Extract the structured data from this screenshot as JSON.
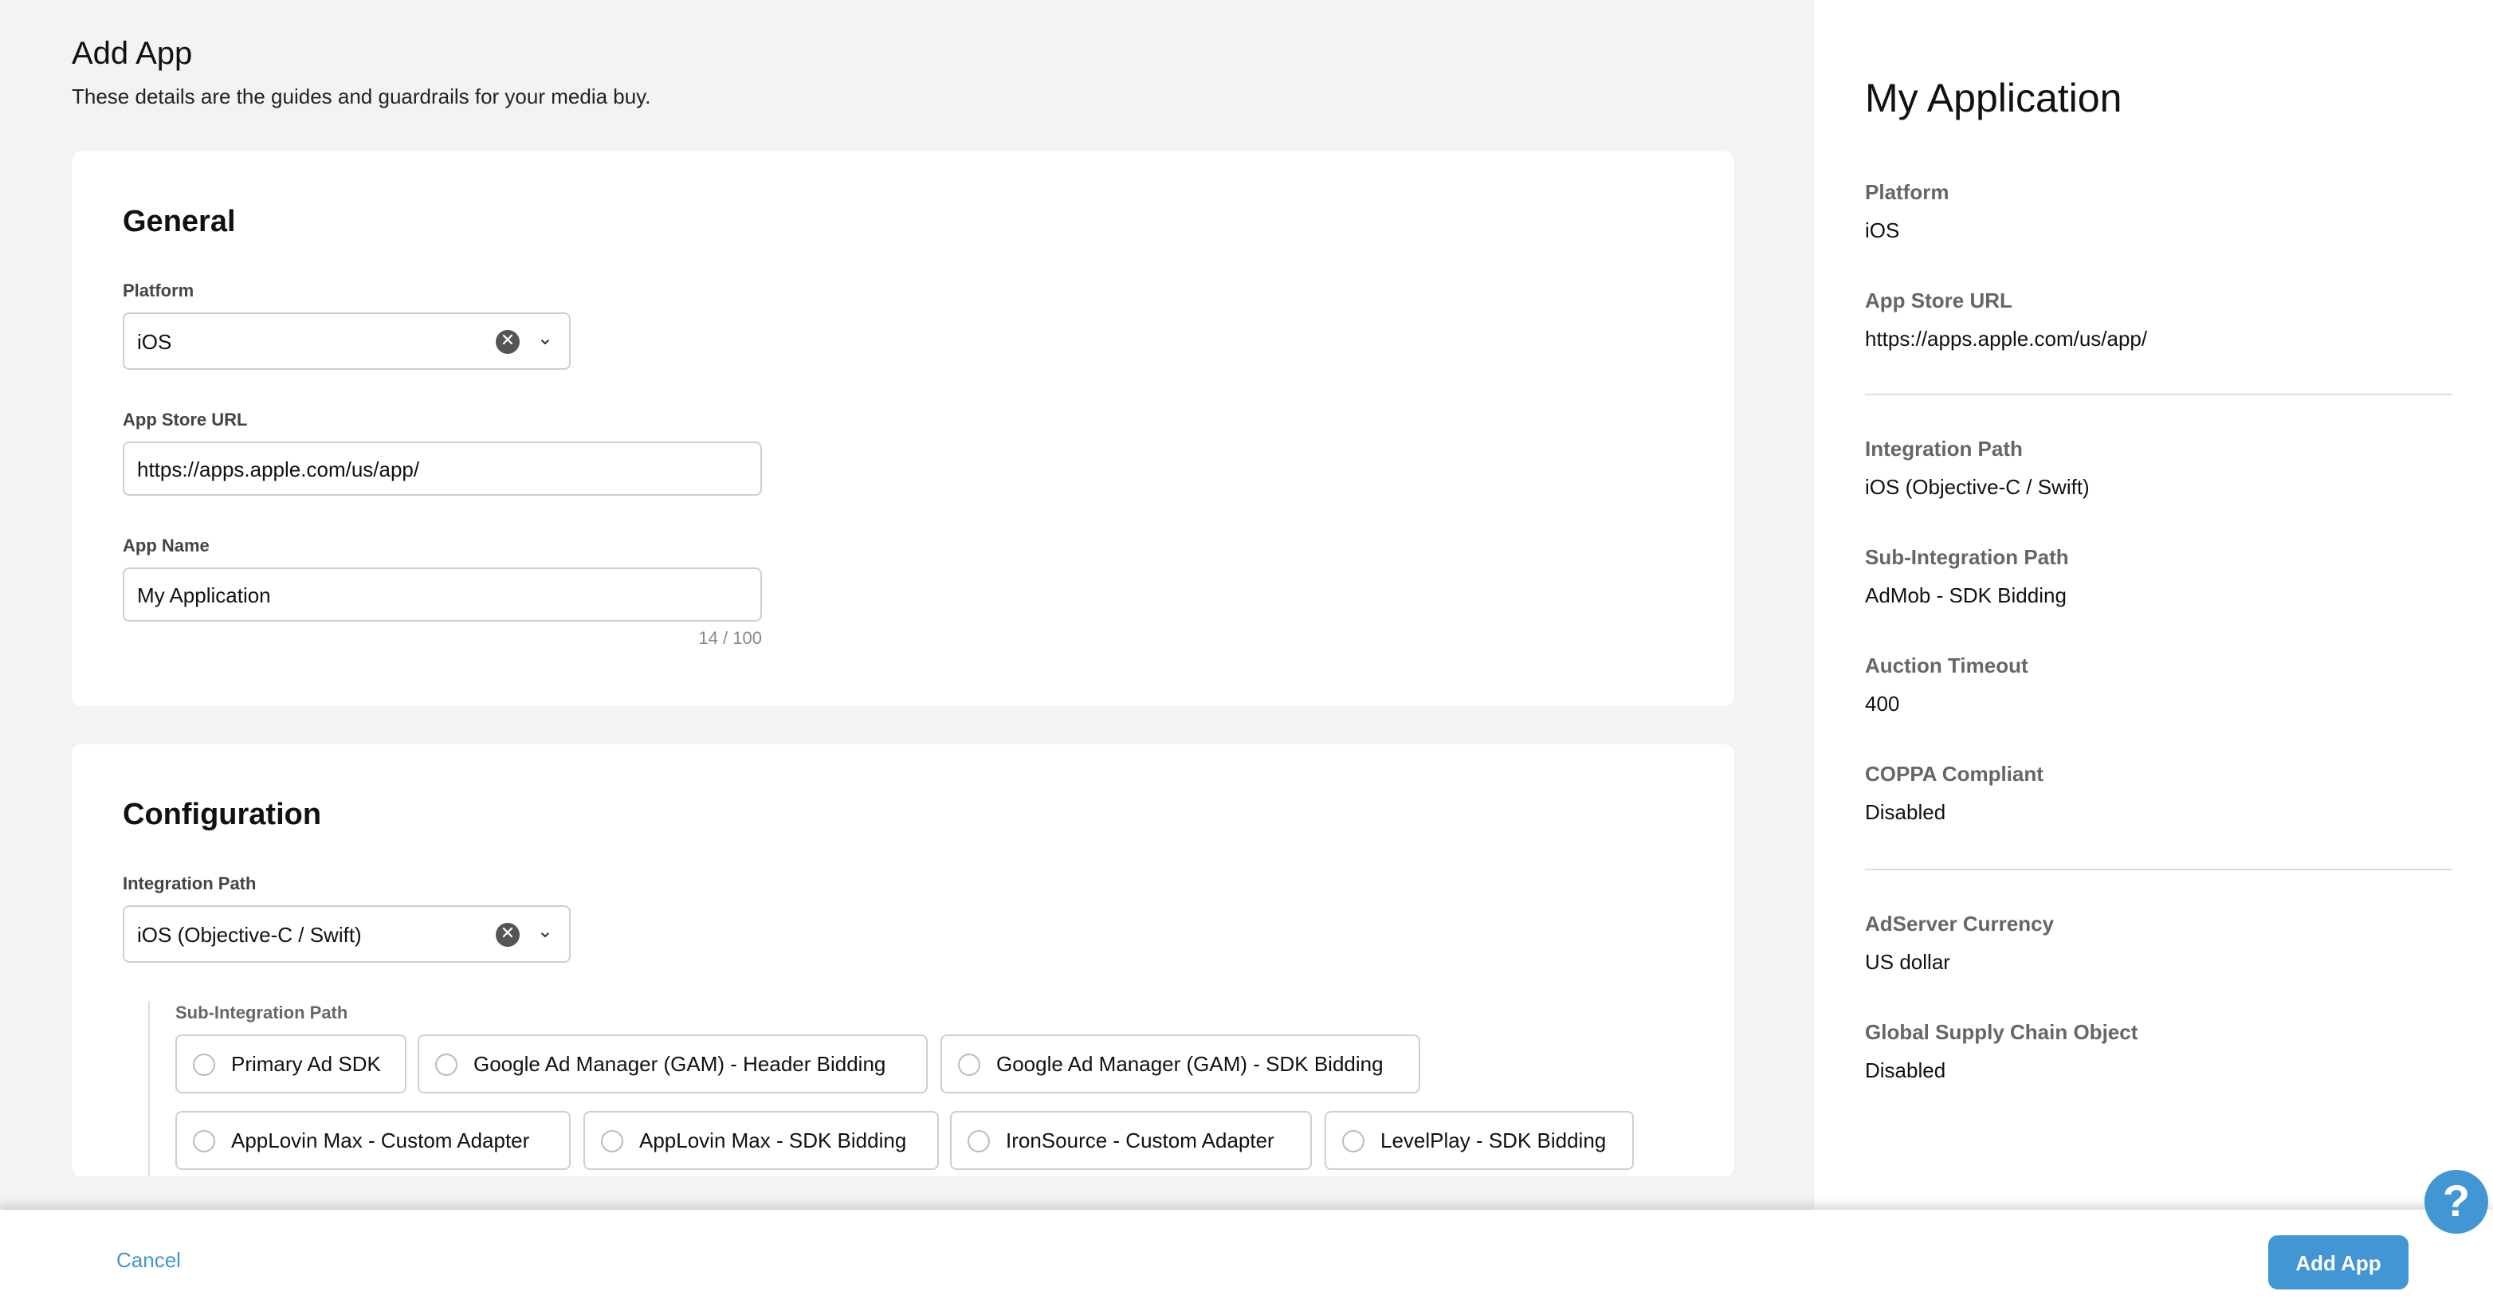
{
  "header": {
    "title": "Add App",
    "subtitle": "These details are the guides and guardrails for your media buy."
  },
  "general": {
    "title": "General",
    "platform": {
      "label": "Platform",
      "value": "iOS"
    },
    "app_store_url": {
      "label": "App Store URL",
      "value": "https://apps.apple.com/us/app/"
    },
    "app_name": {
      "label": "App Name",
      "value": "My Application",
      "counter": "14 / 100"
    }
  },
  "configuration": {
    "title": "Configuration",
    "integration_path": {
      "label": "Integration Path",
      "value": "iOS (Objective-C / Swift)"
    },
    "sub_integration": {
      "label": "Sub-Integration Path",
      "options": [
        "Primary Ad SDK",
        "Google Ad Manager (GAM) - Header Bidding",
        "Google Ad Manager (GAM) - SDK Bidding",
        "AppLovin Max - Custom Adapter",
        "AppLovin Max - SDK Bidding",
        "IronSource - Custom Adapter",
        "LevelPlay - SDK Bidding"
      ]
    }
  },
  "summary": {
    "title": "My Application",
    "items": [
      {
        "label": "Platform",
        "value": "iOS"
      },
      {
        "label": "App Store URL",
        "value": "https://apps.apple.com/us/app/"
      },
      {
        "label": "Integration Path",
        "value": "iOS (Objective-C / Swift)"
      },
      {
        "label": "Sub-Integration Path",
        "value": "AdMob - SDK Bidding"
      },
      {
        "label": "Auction Timeout",
        "value": "400"
      },
      {
        "label": "COPPA Compliant",
        "value": "Disabled"
      },
      {
        "label": "AdServer Currency",
        "value": "US dollar"
      },
      {
        "label": "Global Supply Chain Object",
        "value": "Disabled"
      }
    ]
  },
  "footer": {
    "cancel": "Cancel",
    "submit": "Add App",
    "help": "?"
  },
  "colors": {
    "accent": "#4196d3",
    "background": "#f3f3f3"
  }
}
